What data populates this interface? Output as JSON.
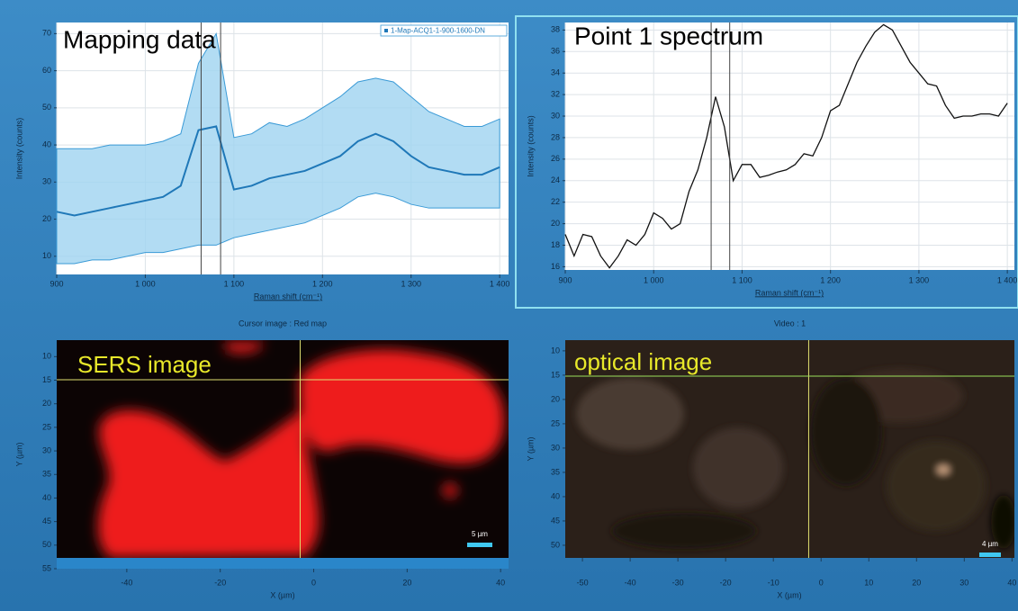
{
  "chart_data": [
    {
      "type": "line",
      "title": "Mapping data",
      "xlabel": "Raman shift (cm⁻¹)",
      "ylabel": "Intensity (counts)",
      "x": [
        900,
        920,
        940,
        960,
        980,
        1000,
        1020,
        1040,
        1060,
        1080,
        1100,
        1120,
        1140,
        1160,
        1180,
        1200,
        1220,
        1240,
        1260,
        1280,
        1300,
        1320,
        1340,
        1360,
        1380,
        1400
      ],
      "band": {
        "color": "#9fd3f0",
        "high": [
          39,
          39,
          39,
          40,
          40,
          40,
          41,
          43,
          62,
          70,
          42,
          43,
          46,
          45,
          47,
          50,
          53,
          57,
          58,
          57,
          53,
          49,
          47,
          45,
          45,
          47
        ],
        "low": [
          8,
          8,
          9,
          9,
          10,
          11,
          11,
          12,
          13,
          13,
          15,
          16,
          17,
          18,
          19,
          21,
          23,
          26,
          27,
          26,
          24,
          23,
          23,
          23,
          23,
          23
        ]
      },
      "series": [
        {
          "name": "1-Map-ACQ1-1-900-1600-DN",
          "color": "#1f78b8",
          "values": [
            22,
            21,
            22,
            23,
            24,
            25,
            26,
            29,
            44,
            45,
            28,
            29,
            31,
            32,
            33,
            35,
            37,
            41,
            43,
            41,
            37,
            34,
            33,
            32,
            32,
            34
          ]
        }
      ],
      "legend": "upper right",
      "xlim": [
        900,
        1410
      ],
      "ylim": [
        5.1,
        73
      ],
      "xticks": [
        900,
        {
          "value": 1000,
          "label": "1 000"
        },
        {
          "value": 1100,
          "label": "1 100"
        },
        {
          "value": 1200,
          "label": "1 200"
        },
        {
          "value": 1300,
          "label": "1 300"
        },
        {
          "value": 1400,
          "label": "1 400"
        }
      ],
      "yticks": [
        10,
        20,
        30,
        40,
        50,
        60,
        70
      ],
      "cursor_x": [
        1063,
        1085
      ],
      "grid": true,
      "y_axis_reversed": false
    },
    {
      "type": "line",
      "title": "Point 1 spectrum",
      "xlabel": "Raman shift (cm⁻¹)",
      "ylabel": "Intensity (counts)",
      "x": [
        900,
        910,
        920,
        930,
        940,
        950,
        960,
        970,
        980,
        990,
        1000,
        1010,
        1020,
        1030,
        1040,
        1050,
        1060,
        1070,
        1080,
        1090,
        1100,
        1110,
        1120,
        1130,
        1140,
        1150,
        1160,
        1170,
        1180,
        1190,
        1200,
        1210,
        1220,
        1230,
        1240,
        1250,
        1260,
        1270,
        1280,
        1290,
        1300,
        1310,
        1320,
        1330,
        1340,
        1350,
        1360,
        1370,
        1380,
        1390,
        1400
      ],
      "series": [
        {
          "color": "#111111",
          "values": [
            19,
            17,
            19,
            18.8,
            17,
            15.9,
            17,
            18.5,
            18,
            19,
            21,
            20.5,
            19.5,
            20,
            23,
            25,
            28,
            31.8,
            29,
            24,
            25.5,
            25.5,
            24.3,
            24.5,
            24.8,
            25,
            25.5,
            26.5,
            26.3,
            28,
            30.5,
            31,
            33,
            35,
            36.5,
            37.8,
            38.5,
            38,
            36.5,
            35,
            34,
            33,
            32.8,
            31,
            29.8,
            30,
            30,
            30.2,
            30.2,
            30,
            31.2
          ]
        }
      ],
      "xlim": [
        900,
        1408
      ],
      "ylim": [
        15.7,
        38.7
      ],
      "xticks": [
        900,
        {
          "value": 1000,
          "label": "1 000"
        },
        {
          "value": 1100,
          "label": "1 100"
        },
        {
          "value": 1200,
          "label": "1 200"
        },
        {
          "value": 1300,
          "label": "1 300"
        },
        {
          "value": 1400,
          "label": "1 400"
        }
      ],
      "yticks": [
        16,
        18,
        20,
        22,
        24,
        26,
        28,
        30,
        32,
        34,
        36,
        38
      ],
      "cursor_x": [
        1065,
        1086
      ],
      "grid": true,
      "y_axis_reversed": false
    },
    {
      "type": "heatmap",
      "title": "SERS image",
      "header": "Cursor image : Red map",
      "xlabel": "X (µm)",
      "ylabel": "Y (µm)",
      "xlim": [
        -55,
        41.7
      ],
      "ylim": [
        6.5,
        55
      ],
      "xticks": [
        -40,
        -20,
        0,
        20,
        40
      ],
      "yticks": [
        10,
        15,
        20,
        25,
        30,
        35,
        40,
        45,
        50,
        55
      ],
      "cursor_x": [
        -2.9
      ],
      "cursor_y": [
        14.9
      ],
      "scale_bar_label": "5 µm",
      "grid": false,
      "y_axis_reversed": true
    },
    {
      "type": "image",
      "title": "optical image",
      "header": "Video : 1",
      "xlabel": "X (µm)",
      "ylabel": "Y (µm)",
      "xlim": [
        -53.6,
        40.5
      ],
      "ylim": [
        7.8,
        52.6
      ],
      "xticks": [
        -50,
        -40,
        -30,
        -20,
        -10,
        0,
        10,
        20,
        30,
        40
      ],
      "yticks": [
        10,
        15,
        20,
        25,
        30,
        35,
        40,
        45,
        50
      ],
      "cursor_x": [
        -2.6
      ],
      "cursor_y": [
        15.2
      ],
      "scale_bar_label": "4 µm",
      "grid": false,
      "y_axis_reversed": true
    }
  ]
}
